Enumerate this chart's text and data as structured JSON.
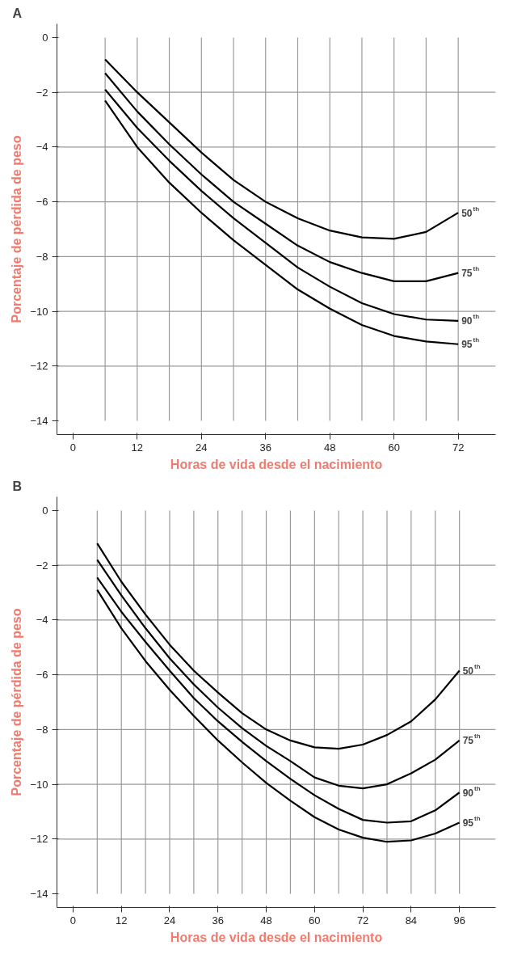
{
  "chart_data": [
    {
      "type": "line",
      "title": "A",
      "xlabel": "Horas de vida desde el nacimiento",
      "ylabel": "Porcentaje de pérdida de peso",
      "x": [
        6,
        12,
        18,
        24,
        30,
        36,
        42,
        48,
        54,
        60,
        66,
        72
      ],
      "xlim": [
        -3,
        79
      ],
      "xticks": [
        0,
        12,
        24,
        36,
        48,
        60,
        72
      ],
      "ylim": [
        -14.5,
        0.5
      ],
      "yticks": [
        0,
        -2,
        -4,
        -6,
        -8,
        -10,
        -12,
        -14
      ],
      "grid": true,
      "series": [
        {
          "name": "50$^{th}$",
          "color": "#000000",
          "values": [
            -0.8,
            -2.0,
            -3.1,
            -4.2,
            -5.2,
            -6.0,
            -6.6,
            -7.05,
            -7.3,
            -7.35,
            -7.1,
            -6.4
          ]
        },
        {
          "name": "75$^{th}$",
          "color": "#000000",
          "values": [
            -1.3,
            -2.7,
            -3.9,
            -5.0,
            -6.0,
            -6.8,
            -7.6,
            -8.2,
            -8.6,
            -8.9,
            -8.9,
            -8.6
          ]
        },
        {
          "name": "90$^{th}$",
          "color": "#000000",
          "values": [
            -1.9,
            -3.3,
            -4.5,
            -5.6,
            -6.6,
            -7.5,
            -8.4,
            -9.1,
            -9.7,
            -10.1,
            -10.3,
            -10.35
          ]
        },
        {
          "name": "95$^{th}$",
          "color": "#000000",
          "values": [
            -2.3,
            -4.0,
            -5.3,
            -6.4,
            -7.4,
            -8.3,
            -9.2,
            -9.9,
            -10.5,
            -10.9,
            -11.1,
            -11.2
          ]
        }
      ]
    },
    {
      "type": "line",
      "title": "B",
      "xlabel": "Horas de vida desde el nacimiento",
      "ylabel": "Porcentaje de pérdida de peso",
      "x": [
        6,
        12,
        18,
        24,
        30,
        36,
        42,
        48,
        54,
        60,
        66,
        72,
        78,
        84,
        90,
        96
      ],
      "xlim": [
        -4,
        105
      ],
      "xticks": [
        0,
        12,
        24,
        36,
        48,
        60,
        72,
        84,
        96
      ],
      "ylim": [
        -14.5,
        0.5
      ],
      "yticks": [
        0,
        -2,
        -4,
        -6,
        -8,
        -10,
        -12,
        -14
      ],
      "grid": true,
      "series": [
        {
          "name": "50$^{th}$",
          "color": "#000000",
          "values": [
            -1.2,
            -2.6,
            -3.8,
            -4.9,
            -5.85,
            -6.65,
            -7.4,
            -8.0,
            -8.4,
            -8.65,
            -8.7,
            -8.55,
            -8.2,
            -7.7,
            -6.9,
            -5.85
          ]
        },
        {
          "name": "75$^{th}$",
          "color": "#000000",
          "values": [
            -1.8,
            -3.1,
            -4.3,
            -5.4,
            -6.35,
            -7.2,
            -7.95,
            -8.6,
            -9.15,
            -9.75,
            -10.05,
            -10.15,
            -10.0,
            -9.6,
            -9.1,
            -8.4
          ]
        },
        {
          "name": "90$^{th}$",
          "color": "#000000",
          "values": [
            -2.45,
            -3.7,
            -4.8,
            -5.85,
            -6.85,
            -7.7,
            -8.45,
            -9.15,
            -9.8,
            -10.4,
            -10.9,
            -11.3,
            -11.4,
            -11.35,
            -10.95,
            -10.3
          ]
        },
        {
          "name": "95$^{th}$",
          "color": "#000000",
          "values": [
            -2.9,
            -4.3,
            -5.5,
            -6.55,
            -7.5,
            -8.4,
            -9.2,
            -9.95,
            -10.6,
            -11.2,
            -11.65,
            -11.95,
            -12.1,
            -12.05,
            -11.8,
            -11.4
          ]
        }
      ]
    }
  ]
}
